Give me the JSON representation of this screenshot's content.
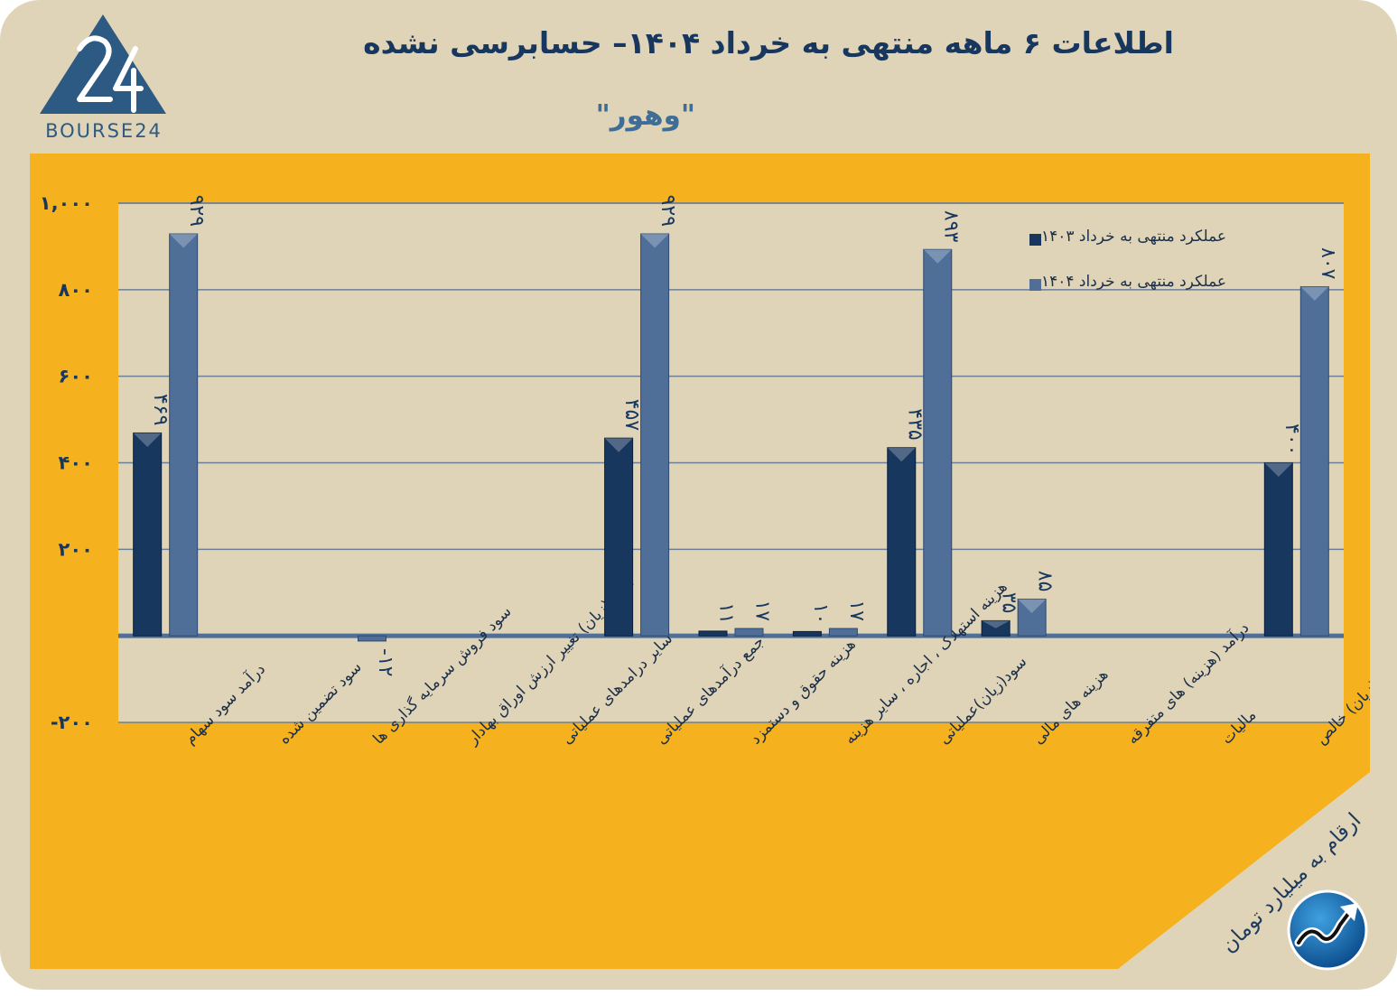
{
  "header": {
    "title": "اطلاعات ۶ ماهه منتهی به خرداد ۱۴۰۴– حسابرسی نشده",
    "subtitle": "\"وهور\"",
    "logo_text": "BOURSE24"
  },
  "footer": {
    "unit_note": "ارقام به میلیارد تومان"
  },
  "colors": {
    "frame": "#e0d4b8",
    "panel": "#f5b11e",
    "plot": "#e0d4b8",
    "series_1403": "#17375e",
    "series_1404": "#4f6f98"
  },
  "icons": [
    "bourse24-logo-icon",
    "trend-arrow-icon"
  ],
  "chart_data": {
    "type": "bar",
    "categories": [
      "درآمد سود سهام",
      "سود تضمین شده",
      "سود فروش سرمایه گذاری ها",
      "سود (زیان) تغییر ارزش اوراق بهادار",
      "سایر درامدهای عملیاتی",
      "جمع درآمدهای عملیاتی",
      "هزینه حقوق و دستمزد",
      "هزینه استهلاک ، اجاره ، سایر هزینه",
      "سود(زیان)عملیاتی",
      "هزینه های مالی",
      "درآمد (هزینه) های متفرقه",
      "مالیات",
      "سود(زیان) خالص"
    ],
    "series": [
      {
        "name": "عملکرد منتهی به خرداد ۱۴۰۳",
        "values": [
          469,
          0,
          0,
          0,
          0,
          457,
          11,
          10,
          435,
          35,
          0,
          0,
          400
        ],
        "labels": [
          "۴۶۹",
          "",
          "",
          "",
          "",
          "۴۵۷",
          "۱۱",
          "۱۰",
          "۴۳۵",
          "۳۵",
          "",
          "",
          "۴۰۰"
        ]
      },
      {
        "name": "عملکرد منتهی به خرداد ۱۴۰۴",
        "values": [
          929,
          0,
          -12,
          0,
          0,
          929,
          17,
          17,
          893,
          85,
          0,
          0,
          807
        ],
        "labels": [
          "۹۲۹",
          "",
          "-۱۲",
          "",
          "",
          "۹۲۹",
          "۱۷",
          "۱۷",
          "۸۹۳",
          "۸۵",
          "",
          "",
          "۸۰۷"
        ]
      }
    ],
    "yticks": [
      -200,
      200,
      400,
      600,
      800,
      1000
    ],
    "ytick_labels": [
      "-۲۰۰",
      "۲۰۰",
      "۴۰۰",
      "۶۰۰",
      "۸۰۰",
      "۱,۰۰۰"
    ],
    "ylim": [
      -200,
      1000
    ],
    "grid": true,
    "legend_position": "top-right"
  }
}
